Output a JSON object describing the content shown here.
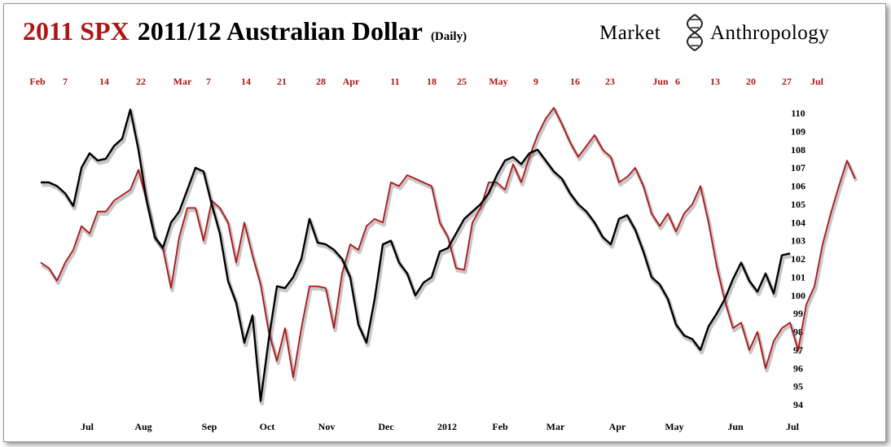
{
  "title": {
    "part_spx": "2011 SPX",
    "part_aud": "2011/12 Australian Dollar",
    "part_freq": "(Daily)"
  },
  "brand": {
    "left": "Market",
    "right": "Anthropology"
  },
  "colors": {
    "spx": "#b01515",
    "aud": "#000000",
    "title_accent": "#b01515"
  },
  "chart_data": {
    "type": "line",
    "title": "2011 SPX 2011/12 Australian Dollar (Daily)",
    "top_axis_ticks": [
      "Feb",
      "7",
      "14",
      "22",
      "Mar",
      "7",
      "14",
      "21",
      "28",
      "Apr",
      "11",
      "18",
      "25",
      "May",
      "9",
      "16",
      "23",
      "Jun",
      "6",
      "13",
      "20",
      "27",
      "Jul"
    ],
    "bottom_axis_ticks": [
      "Jul",
      "Aug",
      "Sep",
      "Oct",
      "Nov",
      "Dec",
      "2012",
      "Feb",
      "Mar",
      "Apr",
      "May",
      "Jun",
      "Jul"
    ],
    "y_ticks": [
      "110",
      "109",
      "108",
      "107",
      "106",
      "105",
      "104",
      "103",
      "102",
      "101",
      "100",
      "99",
      "98",
      "97",
      "96",
      "95",
      "94"
    ],
    "ylim": [
      94,
      110
    ],
    "x_range": [
      0,
      100
    ],
    "grid": false,
    "series": [
      {
        "name": "SPX",
        "axis": "top dates",
        "x": [
          0,
          1,
          2,
          3,
          4,
          5,
          6,
          7,
          8,
          9,
          10,
          11,
          12,
          13,
          14,
          15,
          16,
          17,
          18,
          19,
          20,
          21,
          22,
          23,
          24,
          25,
          26,
          27,
          28,
          29,
          30,
          31,
          32,
          33,
          34,
          35,
          36,
          37,
          38,
          39,
          40,
          41,
          42,
          43,
          44,
          45,
          46,
          47,
          48,
          49,
          50,
          51,
          52,
          53,
          54,
          55,
          56,
          57,
          58,
          59,
          60,
          61,
          62,
          63,
          64,
          65,
          66,
          67,
          68,
          69,
          70,
          71,
          72,
          73,
          74,
          75,
          76,
          77,
          78,
          79,
          80,
          81,
          82,
          83,
          84,
          85,
          86,
          87,
          88,
          89,
          90,
          91,
          92,
          93,
          94,
          95,
          96,
          97,
          98,
          99,
          100
        ],
        "values": [
          101.8,
          101.5,
          100.8,
          101.8,
          102.5,
          103.8,
          103.4,
          104.6,
          104.6,
          105.2,
          105.5,
          105.8,
          106.9,
          105.2,
          103.2,
          102.6,
          100.4,
          103.2,
          104.8,
          104.8,
          103.0,
          105.2,
          104.8,
          104.0,
          101.8,
          104.0,
          102.2,
          100.6,
          98.0,
          96.4,
          98.2,
          95.5,
          98.2,
          100.5,
          100.5,
          100.4,
          98.2,
          101.2,
          102.8,
          102.5,
          103.8,
          104.2,
          104.0,
          106.2,
          106.0,
          106.6,
          106.4,
          106.2,
          106.0,
          104.0,
          103.2,
          101.5,
          101.4,
          104.0,
          104.8,
          106.2,
          106.2,
          105.8,
          107.2,
          106.2,
          107.6,
          108.8,
          109.7,
          110.3,
          109.4,
          108.4,
          107.6,
          108.2,
          108.8,
          108.0,
          107.6,
          106.2,
          106.5,
          107.0,
          106.0,
          104.5,
          103.8,
          104.5,
          103.5,
          104.5,
          105.0,
          106.0,
          104.0,
          101.6,
          99.7,
          98.2,
          98.5,
          97.0,
          98.0,
          96.0,
          97.5,
          98.2,
          98.5,
          97.0,
          99.5,
          100.5,
          102.8,
          104.5,
          106.0,
          107.4,
          106.4
        ]
      },
      {
        "name": "Australian Dollar",
        "axis": "bottom dates",
        "x": [
          0,
          1,
          2,
          3,
          4,
          5,
          6,
          7,
          8,
          9,
          10,
          11,
          12,
          13,
          14,
          15,
          16,
          17,
          18,
          19,
          20,
          21,
          22,
          23,
          24,
          25,
          26,
          27,
          28,
          29,
          30,
          31,
          32,
          33,
          34,
          35,
          36,
          37,
          38,
          39,
          40,
          41,
          42,
          43,
          44,
          45,
          46,
          47,
          48,
          49,
          50,
          51,
          52,
          53,
          54,
          55,
          56,
          57,
          58,
          59,
          60,
          61,
          62,
          63,
          64,
          65,
          66,
          67,
          68,
          69,
          70,
          71,
          72,
          73,
          74,
          75,
          76,
          77,
          78,
          79,
          80,
          81,
          82,
          83,
          84,
          85,
          86,
          87,
          88,
          89,
          90,
          91,
          92
        ],
        "values": [
          106.2,
          106.2,
          106.0,
          105.6,
          104.9,
          107.0,
          107.8,
          107.4,
          107.5,
          108.2,
          108.6,
          110.2,
          108.0,
          105.2,
          103.2,
          102.6,
          104.0,
          104.6,
          105.8,
          107.0,
          106.8,
          105.0,
          103.4,
          100.8,
          99.6,
          97.4,
          98.9,
          94.2,
          97.6,
          100.5,
          100.4,
          101.0,
          102.0,
          104.2,
          102.9,
          102.8,
          102.5,
          102.0,
          101.0,
          98.4,
          97.4,
          99.8,
          102.8,
          103.0,
          101.8,
          101.2,
          100.0,
          100.7,
          101.0,
          102.4,
          102.6,
          103.4,
          104.2,
          104.6,
          105.0,
          105.6,
          106.6,
          107.4,
          107.6,
          107.2,
          107.8,
          108.0,
          107.4,
          106.8,
          106.4,
          105.6,
          105.0,
          104.6,
          104.0,
          103.2,
          102.8,
          104.2,
          104.4,
          103.6,
          102.4,
          101.0,
          100.6,
          99.8,
          98.4,
          97.8,
          97.6,
          97.0,
          98.3,
          99.0,
          99.8,
          100.9,
          101.8,
          100.8,
          100.2,
          101.2,
          100.1,
          102.2,
          102.3
        ]
      }
    ]
  }
}
